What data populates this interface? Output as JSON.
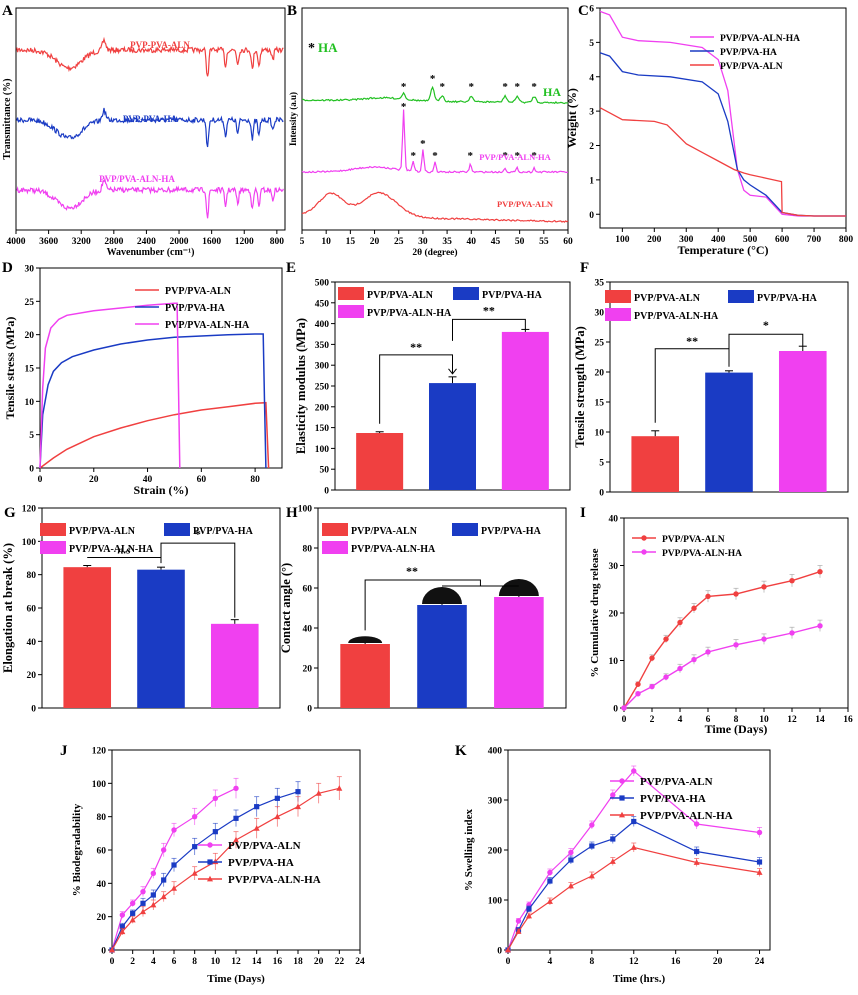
{
  "figure": {
    "colors": {
      "aln": "#f04040",
      "ha": "#1a3bc4",
      "alnha": "#f040f0",
      "xrd_ha": "#22c022",
      "axis": "#000000"
    }
  },
  "chart_data": [
    {
      "panel": "A",
      "type": "line",
      "title": "",
      "xlabel": "Wavenumber (cm⁻¹)",
      "ylabel": "Transmittance (%)",
      "xticks": [
        "4000",
        "3600",
        "3200",
        "2800",
        "2400",
        "2000",
        "1600",
        "1200",
        "800"
      ],
      "xlim": [
        4000,
        700
      ],
      "series": [
        {
          "name": "PVP-PVA-ALN",
          "color_key": "aln",
          "offset": 2.0
        },
        {
          "name": "PVP-PVA-HA",
          "color_key": "ha",
          "offset": 1.0
        },
        {
          "name": "PVP/PVA-ALN-HA",
          "color_key": "alnha",
          "offset": 0.0
        }
      ]
    },
    {
      "panel": "B",
      "type": "line",
      "title": "",
      "xlabel": "2θ (degree)",
      "ylabel": "Intensity (a.u)",
      "xticks": [
        "5",
        "10",
        "15",
        "20",
        "25",
        "30",
        "35",
        "40",
        "45",
        "50",
        "55",
        "60"
      ],
      "xlim": [
        5,
        60
      ],
      "legend_marker": "*",
      "legend_label": "HA",
      "peak_marker": "*",
      "series": [
        {
          "name": "HA",
          "color_key": "xrd_ha",
          "peaks": [
            26,
            32,
            34,
            40,
            47,
            49.5,
            53
          ]
        },
        {
          "name": "PVP/PVA-ALN-HA",
          "color_key": "alnha",
          "peaks": [
            26,
            28,
            30,
            32.5,
            39.8,
            47,
            49.5,
            53
          ]
        },
        {
          "name": "PVP/PVA-ALN",
          "color_key": "aln",
          "peaks": []
        }
      ]
    },
    {
      "panel": "C",
      "type": "line",
      "title": "",
      "xlabel": "Temperature (°C)",
      "ylabel": "Weight (%)",
      "xticks": [
        "100",
        "200",
        "300",
        "400",
        "500",
        "600",
        "700",
        "800"
      ],
      "yticks": [
        "0",
        "1",
        "2",
        "3",
        "4",
        "5",
        "6"
      ],
      "xlim": [
        30,
        800
      ],
      "ylim": [
        -0.4,
        6
      ],
      "series": [
        {
          "name": "PVP/PVA-ALN-HA",
          "color_key": "alnha",
          "x": [
            30,
            60,
            100,
            150,
            250,
            350,
            400,
            430,
            460,
            480,
            500,
            550,
            600,
            650,
            700,
            800
          ],
          "y": [
            5.9,
            5.8,
            5.15,
            5.05,
            5.0,
            4.85,
            4.5,
            3.6,
            1.3,
            0.7,
            0.55,
            0.5,
            0.0,
            -0.05,
            -0.05,
            -0.05
          ]
        },
        {
          "name": "PVP/PVA-HA",
          "color_key": "ha",
          "x": [
            30,
            60,
            100,
            150,
            250,
            350,
            400,
            430,
            460,
            480,
            500,
            550,
            600,
            650,
            700,
            800
          ],
          "y": [
            4.7,
            4.6,
            4.15,
            4.05,
            4.0,
            3.85,
            3.5,
            2.7,
            1.3,
            1.0,
            0.85,
            0.55,
            0.05,
            -0.03,
            -0.05,
            -0.05
          ]
        },
        {
          "name": "PVP/PVA-ALN",
          "color_key": "aln",
          "x": [
            30,
            60,
            100,
            200,
            240,
            300,
            350,
            400,
            450,
            480,
            500,
            550,
            598,
            600,
            650,
            700,
            800
          ],
          "y": [
            3.1,
            2.95,
            2.75,
            2.7,
            2.6,
            2.05,
            1.8,
            1.55,
            1.3,
            1.2,
            1.15,
            1.05,
            0.95,
            0.05,
            -0.03,
            -0.05,
            -0.05
          ]
        }
      ]
    },
    {
      "panel": "D",
      "type": "line",
      "title": "",
      "xlabel": "Strain (%)",
      "ylabel": "Tensile stress (MPa)",
      "xticks": [
        "0",
        "20",
        "40",
        "60",
        "80"
      ],
      "yticks": [
        "0",
        "5",
        "10",
        "15",
        "20",
        "25",
        "30"
      ],
      "xlim": [
        0,
        90
      ],
      "ylim": [
        0,
        30
      ],
      "series": [
        {
          "name": "PVP/PVA-ALN",
          "color_key": "aln",
          "x": [
            0,
            5,
            10,
            20,
            30,
            40,
            50,
            60,
            70,
            80,
            84,
            84.5,
            85
          ],
          "y": [
            0,
            1.5,
            2.8,
            4.7,
            6.0,
            7.1,
            8.0,
            8.7,
            9.2,
            9.7,
            9.8,
            5,
            0
          ]
        },
        {
          "name": "PVP/PVA-HA",
          "color_key": "ha",
          "x": [
            0,
            1,
            3,
            5,
            8,
            12,
            20,
            30,
            40,
            50,
            60,
            70,
            80,
            83,
            83.5,
            84
          ],
          "y": [
            0,
            8,
            12.5,
            14.5,
            15.8,
            16.7,
            17.7,
            18.6,
            19.2,
            19.6,
            19.8,
            20.0,
            20.1,
            20.1,
            10,
            0
          ]
        },
        {
          "name": "PVP/PVA-ALN-HA",
          "color_key": "alnha",
          "x": [
            0,
            1,
            2,
            4,
            7,
            10,
            20,
            30,
            40,
            50,
            51,
            51.5,
            52
          ],
          "y": [
            0,
            12,
            18,
            21,
            22.3,
            22.9,
            23.6,
            24.0,
            24.4,
            24.7,
            24.7,
            12,
            0
          ]
        }
      ]
    },
    {
      "panel": "E",
      "type": "bar",
      "title": "",
      "xlabel": "",
      "ylabel": "Elasticity modulus (MPa)",
      "yticks": [
        "0",
        "50",
        "100",
        "150",
        "200",
        "250",
        "300",
        "350",
        "400",
        "450",
        "500"
      ],
      "ylim": [
        0,
        500
      ],
      "categories": [
        "PVP/PVA-ALN",
        "PVP/PVA-HA",
        "PVP/PVA-ALN-HA"
      ],
      "values": [
        137,
        257,
        380
      ],
      "errors": [
        3,
        15,
        6
      ],
      "significance": [
        "**",
        "**"
      ]
    },
    {
      "panel": "F",
      "type": "bar",
      "title": "",
      "xlabel": "",
      "ylabel": "Tensile strength (MPa)",
      "yticks": [
        "0",
        "5",
        "10",
        "15",
        "20",
        "25",
        "30",
        "35"
      ],
      "ylim": [
        0,
        35
      ],
      "categories": [
        "PVP/PVA-ALN",
        "PVP/PVA-HA",
        "PVP/PVA-ALN-HA"
      ],
      "values": [
        9.3,
        19.9,
        23.5
      ],
      "errors": [
        0.9,
        0.3,
        0.8
      ],
      "significance": [
        "**",
        "*"
      ]
    },
    {
      "panel": "G",
      "type": "bar",
      "title": "",
      "xlabel": "",
      "ylabel": "Elongation at break (%)",
      "yticks": [
        "0",
        "20",
        "40",
        "60",
        "80",
        "100",
        "120"
      ],
      "ylim": [
        0,
        120
      ],
      "categories": [
        "PVP/PVA-ALN",
        "PVP/PVA-HA",
        "PVP/PVA-ALN-HA"
      ],
      "values": [
        84.5,
        83,
        50.5
      ],
      "errors": [
        1,
        1.5,
        2.5
      ],
      "significance": [
        "n.s",
        "*"
      ]
    },
    {
      "panel": "H",
      "type": "bar",
      "title": "",
      "xlabel": "",
      "ylabel": "Contact angle (°)",
      "yticks": [
        "0",
        "20",
        "40",
        "60",
        "80",
        "100"
      ],
      "ylim": [
        0,
        100
      ],
      "categories": [
        "PVP/PVA-ALN",
        "PVP/PVA-HA",
        "PVP/PVA-ALN-HA"
      ],
      "values": [
        32,
        51.5,
        55.5
      ],
      "errors": [
        0.8,
        2.5,
        3
      ],
      "significance": [
        "**"
      ]
    },
    {
      "panel": "I",
      "type": "line",
      "title": "",
      "xlabel": "Time (Days)",
      "ylabel": "% Cumulative drug release",
      "xticks": [
        "0",
        "2",
        "4",
        "6",
        "8",
        "10",
        "12",
        "14",
        "16"
      ],
      "yticks": [
        "0",
        "10",
        "20",
        "30",
        "40"
      ],
      "xlim": [
        0,
        16
      ],
      "ylim": [
        0,
        40
      ],
      "series": [
        {
          "name": "PVP/PVA-ALN",
          "color_key": "aln",
          "x": [
            0,
            1,
            2,
            3,
            4,
            5,
            6,
            8,
            10,
            12,
            14
          ],
          "y": [
            0,
            5,
            10.5,
            14.5,
            18,
            21,
            23.5,
            24,
            25.5,
            26.8,
            28.7
          ],
          "err": [
            0,
            0.5,
            0.7,
            0.8,
            1,
            1,
            1.2,
            1.2,
            1.2,
            1.3,
            1.3
          ]
        },
        {
          "name": "PVP/PVA-ALN-HA",
          "color_key": "alnha",
          "x": [
            0,
            1,
            2,
            3,
            4,
            5,
            6,
            8,
            10,
            12,
            14
          ],
          "y": [
            0,
            3,
            4.5,
            6.5,
            8.3,
            10.2,
            11.8,
            13.3,
            14.5,
            15.8,
            17.3
          ],
          "err": [
            0,
            0.4,
            0.5,
            0.7,
            0.9,
            1,
            1,
            1.1,
            1.1,
            1.2,
            1.2
          ]
        }
      ]
    },
    {
      "panel": "J",
      "type": "line",
      "title": "",
      "xlabel": "Time (Days)",
      "ylabel": "% Biodegradability",
      "xticks": [
        "0",
        "2",
        "4",
        "6",
        "8",
        "10",
        "12",
        "14",
        "16",
        "18",
        "20",
        "22",
        "24"
      ],
      "yticks": [
        "0",
        "20",
        "40",
        "60",
        "80",
        "100",
        "120"
      ],
      "xlim": [
        0,
        24
      ],
      "ylim": [
        0,
        120
      ],
      "series": [
        {
          "name": "PVP/PVA-ALN",
          "color_key": "alnha",
          "marker": "circle",
          "x": [
            0,
            1,
            2,
            3,
            4,
            5,
            6,
            8,
            10,
            12
          ],
          "y": [
            0,
            21,
            28,
            35,
            46,
            60,
            72,
            80,
            91,
            97
          ],
          "err": [
            0,
            2,
            2,
            3,
            3,
            4,
            4,
            5,
            5,
            6
          ]
        },
        {
          "name": "PVP/PVA-HA",
          "color_key": "ha",
          "marker": "square",
          "x": [
            0,
            1,
            2,
            3,
            4,
            5,
            6,
            8,
            10,
            12,
            14,
            16,
            18
          ],
          "y": [
            0,
            14,
            22,
            28,
            33,
            42,
            51,
            62,
            71,
            79,
            86,
            91,
            95
          ],
          "err": [
            0,
            2,
            2,
            3,
            3,
            4,
            4,
            5,
            5,
            5,
            6,
            6,
            6
          ]
        },
        {
          "name": "PVP/PVA-ALN-HA",
          "color_key": "aln",
          "marker": "triangle",
          "x": [
            0,
            1,
            2,
            3,
            4,
            5,
            6,
            8,
            10,
            12,
            14,
            16,
            18,
            20,
            22
          ],
          "y": [
            0,
            11,
            18,
            23,
            27,
            32,
            37,
            46,
            53,
            66,
            73,
            80,
            86,
            94,
            97
          ],
          "err": [
            0,
            2,
            2,
            3,
            3,
            3,
            4,
            4,
            5,
            5,
            6,
            6,
            6,
            6,
            7
          ]
        }
      ]
    },
    {
      "panel": "K",
      "type": "line",
      "title": "",
      "xlabel": "Time (hrs.)",
      "ylabel": "% Swelling index",
      "xticks": [
        "0",
        "4",
        "8",
        "12",
        "16",
        "20",
        "24"
      ],
      "yticks": [
        "0",
        "100",
        "200",
        "300",
        "400"
      ],
      "xlim": [
        0,
        25
      ],
      "ylim": [
        0,
        400
      ],
      "series": [
        {
          "name": "PVP/PVA-ALN",
          "color_key": "alnha",
          "marker": "circle",
          "x": [
            0,
            1,
            2,
            4,
            6,
            8,
            10,
            12,
            18,
            24
          ],
          "y": [
            0,
            58,
            90,
            155,
            195,
            250,
            310,
            358,
            252,
            235
          ],
          "err": [
            0,
            5,
            6,
            7,
            8,
            8,
            10,
            10,
            10,
            10
          ]
        },
        {
          "name": "PVP/PVA-HA",
          "color_key": "ha",
          "marker": "square",
          "x": [
            0,
            1,
            2,
            4,
            6,
            8,
            10,
            12,
            18,
            24
          ],
          "y": [
            0,
            40,
            82,
            138,
            180,
            208,
            222,
            257,
            197,
            176
          ],
          "err": [
            0,
            5,
            6,
            7,
            8,
            8,
            9,
            10,
            9,
            9
          ]
        },
        {
          "name": "PVP/PVA-ALN-HA",
          "color_key": "aln",
          "marker": "triangle",
          "x": [
            0,
            1,
            2,
            4,
            6,
            8,
            10,
            12,
            18,
            24
          ],
          "y": [
            0,
            37,
            68,
            97,
            128,
            148,
            177,
            205,
            175,
            155
          ],
          "err": [
            0,
            5,
            6,
            7,
            7,
            8,
            8,
            9,
            8,
            8
          ]
        }
      ]
    }
  ]
}
